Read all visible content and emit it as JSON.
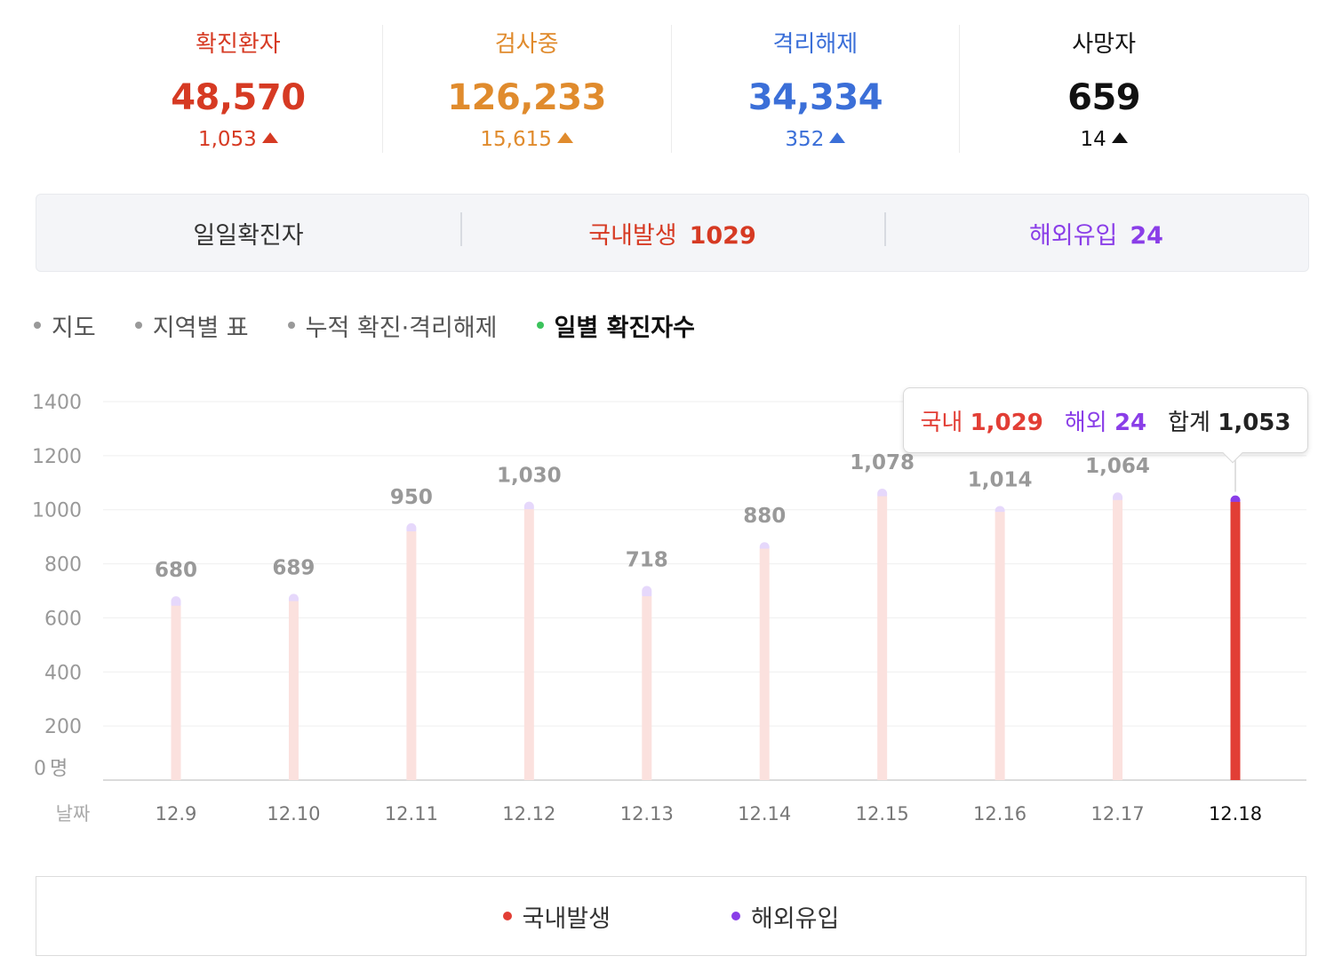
{
  "colors": {
    "confirmed": "#d63a23",
    "testing": "#e08b2d",
    "released": "#3b6fd8",
    "deaths": "#111111",
    "domestic": "#e23e35",
    "overseas": "#8a3ee8",
    "bar_faded": "#fbe1de",
    "bar_cap_faded": "#e6d8fb",
    "grid": "#efefef",
    "axis": "#cfcfcf"
  },
  "stats": [
    {
      "label": "확진환자",
      "value": "48,570",
      "delta": "1,053",
      "color": "#d63a23"
    },
    {
      "label": "검사중",
      "value": "126,233",
      "delta": "15,615",
      "color": "#e08b2d"
    },
    {
      "label": "격리해제",
      "value": "34,334",
      "delta": "352",
      "color": "#3b6fd8"
    },
    {
      "label": "사망자",
      "value": "659",
      "delta": "14",
      "color": "#111111"
    }
  ],
  "daily": {
    "title": "일일확진자",
    "domestic_label": "국내발생",
    "domestic_value": "1029",
    "overseas_label": "해외유입",
    "overseas_value": "24"
  },
  "tabs": [
    {
      "label": "지도",
      "active": false
    },
    {
      "label": "지역별 표",
      "active": false
    },
    {
      "label": "누적 확진·격리해제",
      "active": false
    },
    {
      "label": "일별 확진자수",
      "active": true
    }
  ],
  "tooltip": {
    "domestic_label": "국내",
    "domestic_value": "1,029",
    "overseas_label": "해외",
    "overseas_value": "24",
    "total_label": "합계",
    "total_value": "1,053"
  },
  "legend": [
    {
      "label": "국내발생",
      "color": "#e23e35"
    },
    {
      "label": "해외유입",
      "color": "#8a3ee8"
    }
  ],
  "chart_data": {
    "type": "bar",
    "stacked": true,
    "xlabel": "날짜",
    "y_unit": "명",
    "ylim": [
      0,
      1400
    ],
    "yticks": [
      0,
      200,
      400,
      600,
      800,
      1000,
      1200,
      1400
    ],
    "grid": true,
    "legend_position": "bottom",
    "categories": [
      "12.9",
      "12.10",
      "12.11",
      "12.12",
      "12.13",
      "12.14",
      "12.15",
      "12.16",
      "12.17",
      "12.18"
    ],
    "totals": [
      680,
      689,
      950,
      1030,
      718,
      880,
      1078,
      1014,
      1064,
      1053
    ],
    "highlighted_category": "12.18",
    "series": [
      {
        "name": "국내발생",
        "values": [
          645,
          662,
          920,
          1002,
          680,
          856,
          1050,
          992,
          1036,
          1029
        ]
      },
      {
        "name": "해외유입",
        "values": [
          35,
          27,
          30,
          28,
          38,
          24,
          28,
          22,
          28,
          24
        ]
      }
    ]
  }
}
